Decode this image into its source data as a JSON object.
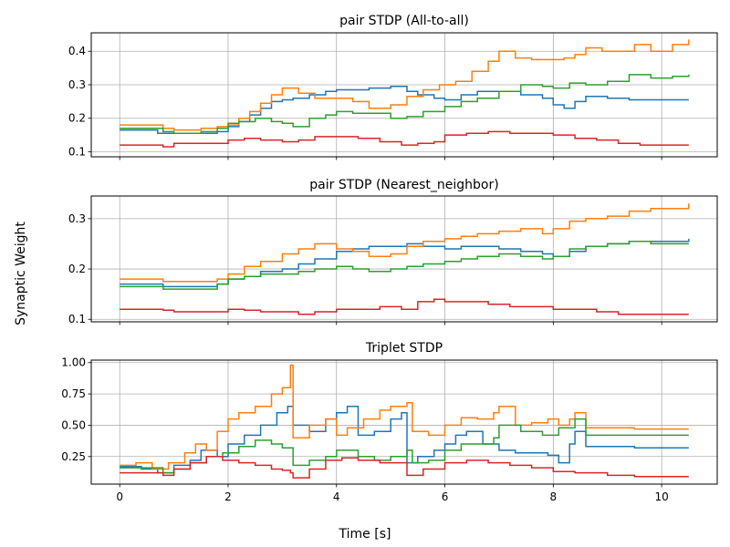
{
  "figure": {
    "xlabel": "Time [s]",
    "ylabel": "Synaptic Weight"
  },
  "chart_data": [
    {
      "type": "line",
      "title": "pair STDP (All-to-all)",
      "xlim": [
        -0.525,
        11.025
      ],
      "ylim": [
        0.085,
        0.455
      ],
      "xticks": [
        0,
        2,
        4,
        6,
        8,
        10
      ],
      "yticks": [
        0.1,
        0.2,
        0.3,
        0.4
      ],
      "ytick_labels": [
        "0.1",
        "0.2",
        "0.3",
        "0.4"
      ],
      "grid": true,
      "show_xtick_labels": false,
      "series": [
        {
          "color": "#1f77b4",
          "x": [
            0,
            0.4,
            0.7,
            1.0,
            1.5,
            1.8,
            2.0,
            2.2,
            2.4,
            2.6,
            2.8,
            3.0,
            3.2,
            3.5,
            3.8,
            4.0,
            4.3,
            4.6,
            5.0,
            5.3,
            5.5,
            5.8,
            6.0,
            6.3,
            6.6,
            7.0,
            7.4,
            7.8,
            8.0,
            8.2,
            8.4,
            8.6,
            9.0,
            9.4,
            9.8,
            10.5
          ],
          "y": [
            0.165,
            0.165,
            0.155,
            0.155,
            0.155,
            0.16,
            0.175,
            0.19,
            0.21,
            0.23,
            0.25,
            0.255,
            0.26,
            0.27,
            0.28,
            0.285,
            0.285,
            0.29,
            0.295,
            0.28,
            0.27,
            0.26,
            0.255,
            0.27,
            0.28,
            0.28,
            0.27,
            0.26,
            0.24,
            0.23,
            0.25,
            0.265,
            0.26,
            0.255,
            0.255,
            0.255
          ]
        },
        {
          "color": "#ff7f0e",
          "x": [
            0,
            0.5,
            0.8,
            1.0,
            1.5,
            1.8,
            2.0,
            2.2,
            2.4,
            2.6,
            2.8,
            3.0,
            3.3,
            3.6,
            4.0,
            4.3,
            4.6,
            5.0,
            5.3,
            5.6,
            5.9,
            6.2,
            6.5,
            6.8,
            7.0,
            7.3,
            7.6,
            8.0,
            8.2,
            8.4,
            8.6,
            8.9,
            9.2,
            9.5,
            9.8,
            10.2,
            10.5
          ],
          "y": [
            0.18,
            0.18,
            0.17,
            0.165,
            0.17,
            0.175,
            0.18,
            0.2,
            0.22,
            0.245,
            0.27,
            0.29,
            0.275,
            0.26,
            0.26,
            0.25,
            0.23,
            0.24,
            0.265,
            0.285,
            0.3,
            0.31,
            0.34,
            0.37,
            0.4,
            0.38,
            0.375,
            0.375,
            0.38,
            0.39,
            0.41,
            0.4,
            0.4,
            0.42,
            0.4,
            0.42,
            0.435
          ]
        },
        {
          "color": "#2ca02c",
          "x": [
            0,
            0.4,
            0.8,
            1.0,
            1.5,
            1.8,
            2.0,
            2.2,
            2.5,
            2.8,
            3.0,
            3.2,
            3.5,
            3.8,
            4.0,
            4.3,
            4.6,
            5.0,
            5.3,
            5.6,
            6.0,
            6.3,
            6.6,
            7.0,
            7.4,
            7.8,
            8.0,
            8.3,
            8.6,
            9.0,
            9.4,
            9.8,
            10.2,
            10.5
          ],
          "y": [
            0.17,
            0.17,
            0.16,
            0.155,
            0.16,
            0.17,
            0.185,
            0.19,
            0.2,
            0.19,
            0.185,
            0.175,
            0.2,
            0.21,
            0.22,
            0.215,
            0.215,
            0.2,
            0.205,
            0.22,
            0.235,
            0.25,
            0.26,
            0.28,
            0.3,
            0.295,
            0.29,
            0.305,
            0.3,
            0.31,
            0.33,
            0.32,
            0.325,
            0.33
          ]
        },
        {
          "color": "#d62728",
          "x": [
            0,
            0.5,
            0.8,
            1.0,
            1.5,
            1.8,
            2.0,
            2.3,
            2.6,
            3.0,
            3.3,
            3.6,
            4.0,
            4.4,
            4.8,
            5.2,
            5.5,
            5.8,
            6.0,
            6.4,
            6.8,
            7.2,
            7.6,
            8.0,
            8.4,
            8.8,
            9.2,
            9.6,
            10.0,
            10.5
          ],
          "y": [
            0.12,
            0.12,
            0.115,
            0.125,
            0.125,
            0.125,
            0.135,
            0.14,
            0.135,
            0.13,
            0.135,
            0.145,
            0.145,
            0.14,
            0.13,
            0.12,
            0.125,
            0.13,
            0.15,
            0.155,
            0.16,
            0.155,
            0.155,
            0.15,
            0.14,
            0.135,
            0.125,
            0.12,
            0.12,
            0.12
          ]
        }
      ]
    },
    {
      "type": "line",
      "title": "pair STDP (Nearest_neighbor)",
      "xlim": [
        -0.525,
        11.025
      ],
      "ylim": [
        0.095,
        0.345
      ],
      "xticks": [
        0,
        2,
        4,
        6,
        8,
        10
      ],
      "yticks": [
        0.1,
        0.2,
        0.3
      ],
      "ytick_labels": [
        "0.1",
        "0.2",
        "0.3"
      ],
      "grid": true,
      "show_xtick_labels": false,
      "series": [
        {
          "color": "#1f77b4",
          "x": [
            0,
            0.4,
            0.8,
            1.0,
            1.5,
            1.8,
            2.0,
            2.3,
            2.6,
            3.0,
            3.3,
            3.6,
            4.0,
            4.3,
            4.6,
            5.0,
            5.3,
            5.6,
            6.0,
            6.3,
            6.6,
            7.0,
            7.4,
            7.8,
            8.0,
            8.3,
            8.6,
            9.0,
            9.4,
            9.8,
            10.5
          ],
          "y": [
            0.17,
            0.17,
            0.165,
            0.165,
            0.165,
            0.17,
            0.18,
            0.185,
            0.195,
            0.2,
            0.21,
            0.22,
            0.235,
            0.24,
            0.245,
            0.245,
            0.25,
            0.245,
            0.24,
            0.245,
            0.245,
            0.24,
            0.235,
            0.23,
            0.225,
            0.235,
            0.245,
            0.25,
            0.255,
            0.255,
            0.26
          ]
        },
        {
          "color": "#ff7f0e",
          "x": [
            0,
            0.5,
            0.8,
            1.0,
            1.5,
            1.8,
            2.0,
            2.3,
            2.6,
            3.0,
            3.3,
            3.6,
            4.0,
            4.3,
            4.6,
            5.0,
            5.3,
            5.6,
            6.0,
            6.3,
            6.6,
            7.0,
            7.4,
            7.8,
            8.0,
            8.3,
            8.6,
            9.0,
            9.4,
            9.8,
            10.2,
            10.5
          ],
          "y": [
            0.18,
            0.18,
            0.175,
            0.175,
            0.175,
            0.18,
            0.19,
            0.205,
            0.215,
            0.23,
            0.24,
            0.25,
            0.24,
            0.235,
            0.225,
            0.23,
            0.245,
            0.255,
            0.26,
            0.265,
            0.27,
            0.275,
            0.28,
            0.27,
            0.28,
            0.295,
            0.3,
            0.305,
            0.315,
            0.32,
            0.32,
            0.33
          ]
        },
        {
          "color": "#2ca02c",
          "x": [
            0,
            0.4,
            0.8,
            1.0,
            1.5,
            1.8,
            2.0,
            2.3,
            2.6,
            3.0,
            3.3,
            3.6,
            4.0,
            4.3,
            4.6,
            5.0,
            5.3,
            5.6,
            6.0,
            6.3,
            6.6,
            7.0,
            7.4,
            7.8,
            8.0,
            8.3,
            8.6,
            9.0,
            9.4,
            9.8,
            10.5
          ],
          "y": [
            0.165,
            0.165,
            0.16,
            0.16,
            0.16,
            0.17,
            0.18,
            0.185,
            0.19,
            0.19,
            0.195,
            0.2,
            0.205,
            0.2,
            0.195,
            0.2,
            0.205,
            0.21,
            0.215,
            0.22,
            0.225,
            0.23,
            0.225,
            0.22,
            0.225,
            0.24,
            0.245,
            0.25,
            0.255,
            0.25,
            0.25
          ]
        },
        {
          "color": "#d62728",
          "x": [
            0,
            0.5,
            0.8,
            1.0,
            1.5,
            1.8,
            2.0,
            2.3,
            2.6,
            3.0,
            3.3,
            3.6,
            4.0,
            4.4,
            4.8,
            5.2,
            5.5,
            5.8,
            6.0,
            6.4,
            6.8,
            7.2,
            7.6,
            8.0,
            8.4,
            8.8,
            9.2,
            9.6,
            10.0,
            10.5
          ],
          "y": [
            0.12,
            0.12,
            0.118,
            0.115,
            0.115,
            0.115,
            0.12,
            0.118,
            0.115,
            0.115,
            0.11,
            0.115,
            0.12,
            0.12,
            0.125,
            0.12,
            0.135,
            0.14,
            0.135,
            0.135,
            0.13,
            0.125,
            0.125,
            0.12,
            0.12,
            0.115,
            0.11,
            0.11,
            0.11,
            0.11
          ]
        }
      ]
    },
    {
      "type": "line",
      "title": "Triplet STDP",
      "xlim": [
        -0.525,
        11.025
      ],
      "ylim": [
        0.03,
        1.02
      ],
      "xticks": [
        0,
        2,
        4,
        6,
        8,
        10
      ],
      "xtick_labels": [
        "0",
        "2",
        "4",
        "6",
        "8",
        "10"
      ],
      "yticks": [
        0.25,
        0.5,
        0.75,
        1.0
      ],
      "ytick_labels": [
        "0.25",
        "0.50",
        "0.75",
        "1.00"
      ],
      "grid": true,
      "show_xtick_labels": true,
      "series": [
        {
          "color": "#1f77b4",
          "x": [
            0,
            0.4,
            0.7,
            1.0,
            1.3,
            1.5,
            1.8,
            2.0,
            2.3,
            2.6,
            2.9,
            3.1,
            3.2,
            3.5,
            3.8,
            4.0,
            4.2,
            4.4,
            4.7,
            5.0,
            5.2,
            5.3,
            5.5,
            5.8,
            6.0,
            6.2,
            6.4,
            6.7,
            7.0,
            7.3,
            7.6,
            7.9,
            8.1,
            8.3,
            8.4,
            8.6,
            9.0,
            9.5,
            10.0,
            10.5
          ],
          "y": [
            0.17,
            0.15,
            0.12,
            0.18,
            0.22,
            0.3,
            0.25,
            0.35,
            0.42,
            0.5,
            0.6,
            0.65,
            0.5,
            0.45,
            0.55,
            0.6,
            0.65,
            0.42,
            0.45,
            0.55,
            0.6,
            0.2,
            0.25,
            0.3,
            0.35,
            0.42,
            0.45,
            0.35,
            0.3,
            0.28,
            0.28,
            0.26,
            0.2,
            0.35,
            0.45,
            0.33,
            0.33,
            0.32,
            0.32,
            0.32
          ]
        },
        {
          "color": "#ff7f0e",
          "x": [
            0,
            0.3,
            0.6,
            0.9,
            1.2,
            1.4,
            1.6,
            1.8,
            2.0,
            2.2,
            2.5,
            2.8,
            3.0,
            3.15,
            3.2,
            3.5,
            3.8,
            4.0,
            4.2,
            4.5,
            4.8,
            5.0,
            5.3,
            5.4,
            5.7,
            6.0,
            6.3,
            6.6,
            6.9,
            7.0,
            7.3,
            7.6,
            7.9,
            8.1,
            8.3,
            8.4,
            8.6,
            9.0,
            9.5,
            10.0,
            10.5
          ],
          "y": [
            0.18,
            0.2,
            0.15,
            0.2,
            0.28,
            0.35,
            0.3,
            0.45,
            0.55,
            0.6,
            0.65,
            0.75,
            0.8,
            0.98,
            0.4,
            0.5,
            0.55,
            0.42,
            0.48,
            0.55,
            0.62,
            0.65,
            0.68,
            0.45,
            0.42,
            0.5,
            0.56,
            0.55,
            0.6,
            0.65,
            0.5,
            0.52,
            0.55,
            0.5,
            0.55,
            0.6,
            0.48,
            0.48,
            0.47,
            0.47,
            0.47
          ]
        },
        {
          "color": "#2ca02c",
          "x": [
            0,
            0.4,
            0.8,
            1.0,
            1.3,
            1.6,
            1.9,
            2.2,
            2.5,
            2.8,
            3.0,
            3.2,
            3.5,
            3.8,
            4.0,
            4.4,
            4.7,
            5.0,
            5.3,
            5.4,
            5.7,
            6.0,
            6.3,
            6.6,
            6.9,
            7.0,
            7.4,
            7.8,
            8.1,
            8.4,
            8.6,
            9.0,
            9.5,
            10.0,
            10.5
          ],
          "y": [
            0.16,
            0.16,
            0.12,
            0.15,
            0.2,
            0.25,
            0.28,
            0.33,
            0.38,
            0.35,
            0.32,
            0.18,
            0.22,
            0.25,
            0.3,
            0.25,
            0.22,
            0.25,
            0.3,
            0.2,
            0.22,
            0.3,
            0.35,
            0.35,
            0.4,
            0.5,
            0.45,
            0.42,
            0.48,
            0.55,
            0.42,
            0.42,
            0.42,
            0.42,
            0.42
          ]
        },
        {
          "color": "#d62728",
          "x": [
            0,
            0.5,
            0.8,
            1.0,
            1.3,
            1.6,
            1.9,
            2.2,
            2.5,
            2.8,
            3.0,
            3.15,
            3.2,
            3.5,
            3.8,
            4.1,
            4.4,
            4.8,
            5.2,
            5.3,
            5.6,
            6.0,
            6.4,
            6.8,
            7.2,
            7.6,
            8.0,
            8.4,
            9.0,
            9.5,
            10.0,
            10.5
          ],
          "y": [
            0.12,
            0.12,
            0.1,
            0.15,
            0.2,
            0.25,
            0.22,
            0.2,
            0.18,
            0.15,
            0.14,
            0.12,
            0.08,
            0.15,
            0.22,
            0.24,
            0.22,
            0.2,
            0.2,
            0.1,
            0.15,
            0.2,
            0.22,
            0.2,
            0.18,
            0.16,
            0.13,
            0.12,
            0.1,
            0.09,
            0.09,
            0.09
          ]
        }
      ]
    }
  ]
}
